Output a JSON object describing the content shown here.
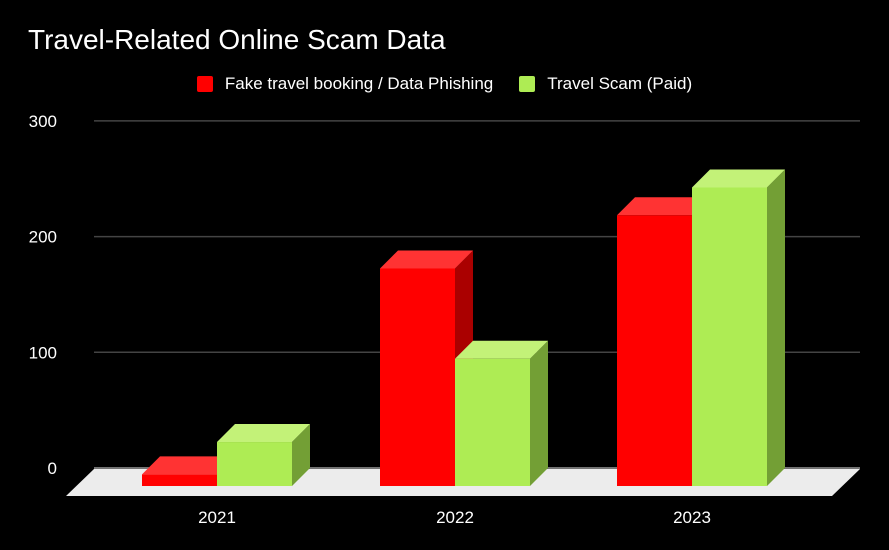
{
  "title": "Travel-Related Online Scam Data",
  "legend": [
    {
      "label": "Fake travel booking / Data Phishing",
      "color": "#ff0000"
    },
    {
      "label": "Travel Scam (Paid)",
      "color": "#aeec54"
    }
  ],
  "y_ticks": [
    "300",
    "200",
    "100",
    "0"
  ],
  "x_labels": [
    "2021",
    "2022",
    "2023"
  ],
  "colors": {
    "background": "#000000",
    "red_front": "#ff0000",
    "red_top": "#ff3333",
    "red_side": "#aa0000",
    "green_front": "#aeec54",
    "green_top": "#c3f278",
    "green_side": "#739f35",
    "floor": "#ececec",
    "grid": "#444444"
  },
  "chart_data": {
    "type": "bar",
    "style": "3d-clustered-column",
    "title": "Travel-Related Online Scam Data",
    "categories": [
      "2021",
      "2022",
      "2023"
    ],
    "series": [
      {
        "name": "Fake travel booking / Data Phishing",
        "color": "#ff0000",
        "values": [
          10,
          188,
          234
        ]
      },
      {
        "name": "Travel Scam (Paid)",
        "color": "#aeec54",
        "values": [
          38,
          110,
          258
        ]
      }
    ],
    "xlabel": "",
    "ylabel": "",
    "ylim": [
      0,
      300
    ],
    "yticks": [
      0,
      100,
      200,
      300
    ],
    "grid": true,
    "legend_position": "top"
  }
}
